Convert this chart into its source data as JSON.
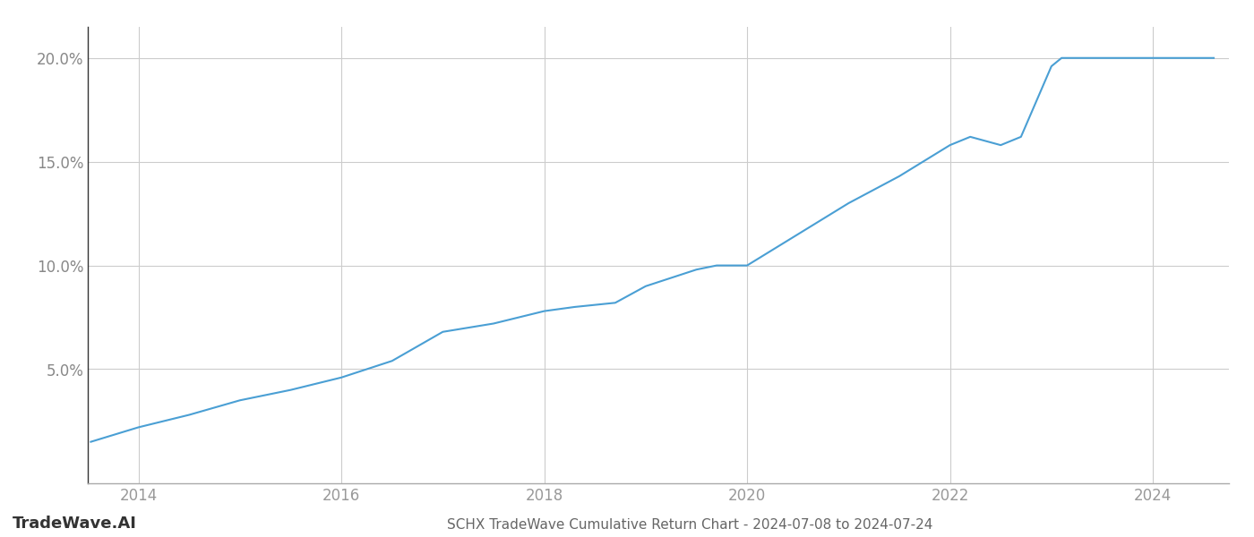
{
  "title": "SCHX TradeWave Cumulative Return Chart - 2024-07-08 to 2024-07-24",
  "watermark": "TradeWave.AI",
  "line_color": "#4a9fd4",
  "background_color": "#ffffff",
  "grid_color": "#cccccc",
  "x_tick_color": "#999999",
  "y_tick_color": "#888888",
  "xlim": [
    2013.5,
    2024.75
  ],
  "ylim": [
    -0.005,
    0.215
  ],
  "yticks": [
    0.05,
    0.1,
    0.15,
    0.2
  ],
  "xticks": [
    2014,
    2016,
    2018,
    2020,
    2022,
    2024
  ],
  "x_years": [
    2013.53,
    2014.0,
    2014.5,
    2015.0,
    2015.5,
    2016.0,
    2016.5,
    2017.0,
    2017.5,
    2018.0,
    2018.3,
    2018.7,
    2019.0,
    2019.5,
    2019.7,
    2020.0,
    2020.5,
    2021.0,
    2021.5,
    2022.0,
    2022.2,
    2022.5,
    2022.7,
    2023.0,
    2023.1,
    2024.0,
    2024.6
  ],
  "y_values": [
    0.015,
    0.022,
    0.028,
    0.035,
    0.04,
    0.046,
    0.054,
    0.068,
    0.072,
    0.078,
    0.08,
    0.082,
    0.09,
    0.098,
    0.1,
    0.1,
    0.115,
    0.13,
    0.143,
    0.158,
    0.162,
    0.158,
    0.162,
    0.196,
    0.2,
    0.2,
    0.2
  ],
  "line_width": 1.5,
  "title_fontsize": 11,
  "tick_fontsize": 12,
  "watermark_fontsize": 13,
  "spine_bottom_color": "#aaaaaa"
}
